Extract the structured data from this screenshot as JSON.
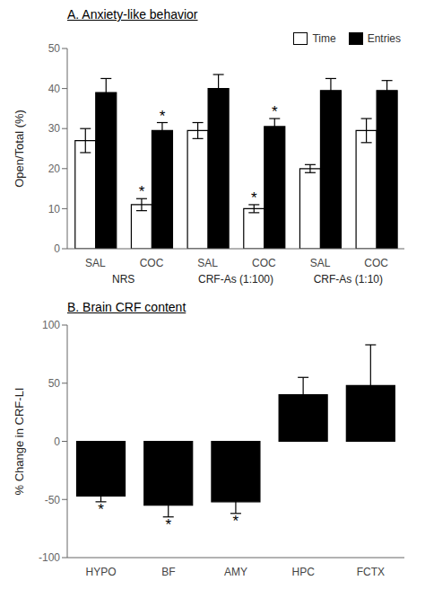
{
  "chart_data": [
    {
      "type": "bar",
      "title": "A. Anxiety-like behavior",
      "ylabel": "Open/Total (%)",
      "categories": [
        "SAL",
        "COC",
        "SAL",
        "COC",
        "SAL",
        "COC"
      ],
      "groups": [
        "NRS",
        "CRF-As (1:100)",
        "CRF-As (1:10)"
      ],
      "series": [
        {
          "name": "Time",
          "color": "#ffffff",
          "values": [
            27,
            11,
            29.5,
            10,
            20,
            29.5
          ],
          "errors": [
            3,
            1.5,
            2,
            1,
            1,
            3
          ],
          "stars": [
            false,
            true,
            false,
            true,
            false,
            false
          ]
        },
        {
          "name": "Entries",
          "color": "#000000",
          "values": [
            39,
            29.5,
            40,
            30.5,
            39.5,
            39.5
          ],
          "errors": [
            3.5,
            2,
            3.5,
            2,
            3,
            2.5
          ],
          "stars": [
            false,
            true,
            false,
            true,
            false,
            false
          ]
        }
      ],
      "annotation": "*",
      "edge_color": "#000000",
      "ylim": [
        0,
        50
      ],
      "yticks": [
        0,
        10,
        20,
        30,
        40,
        50
      ],
      "legend": "upper right",
      "grid": false
    },
    {
      "type": "bar",
      "title": "B. Brain CRF content",
      "ylabel": "% Change in CRF-LI",
      "categories": [
        "HYPO",
        "BF",
        "AMY",
        "HPC",
        "FCTX"
      ],
      "values": [
        -47,
        -55,
        -52,
        40,
        48
      ],
      "errors": [
        5,
        10,
        10,
        15,
        35
      ],
      "stars": [
        true,
        true,
        true,
        false,
        false
      ],
      "annotation": "*",
      "color": "#000000",
      "edge_color": "#000000",
      "ylim": [
        -100,
        100
      ],
      "yticks": [
        -100,
        -50,
        0,
        50,
        100
      ],
      "grid": false
    }
  ]
}
